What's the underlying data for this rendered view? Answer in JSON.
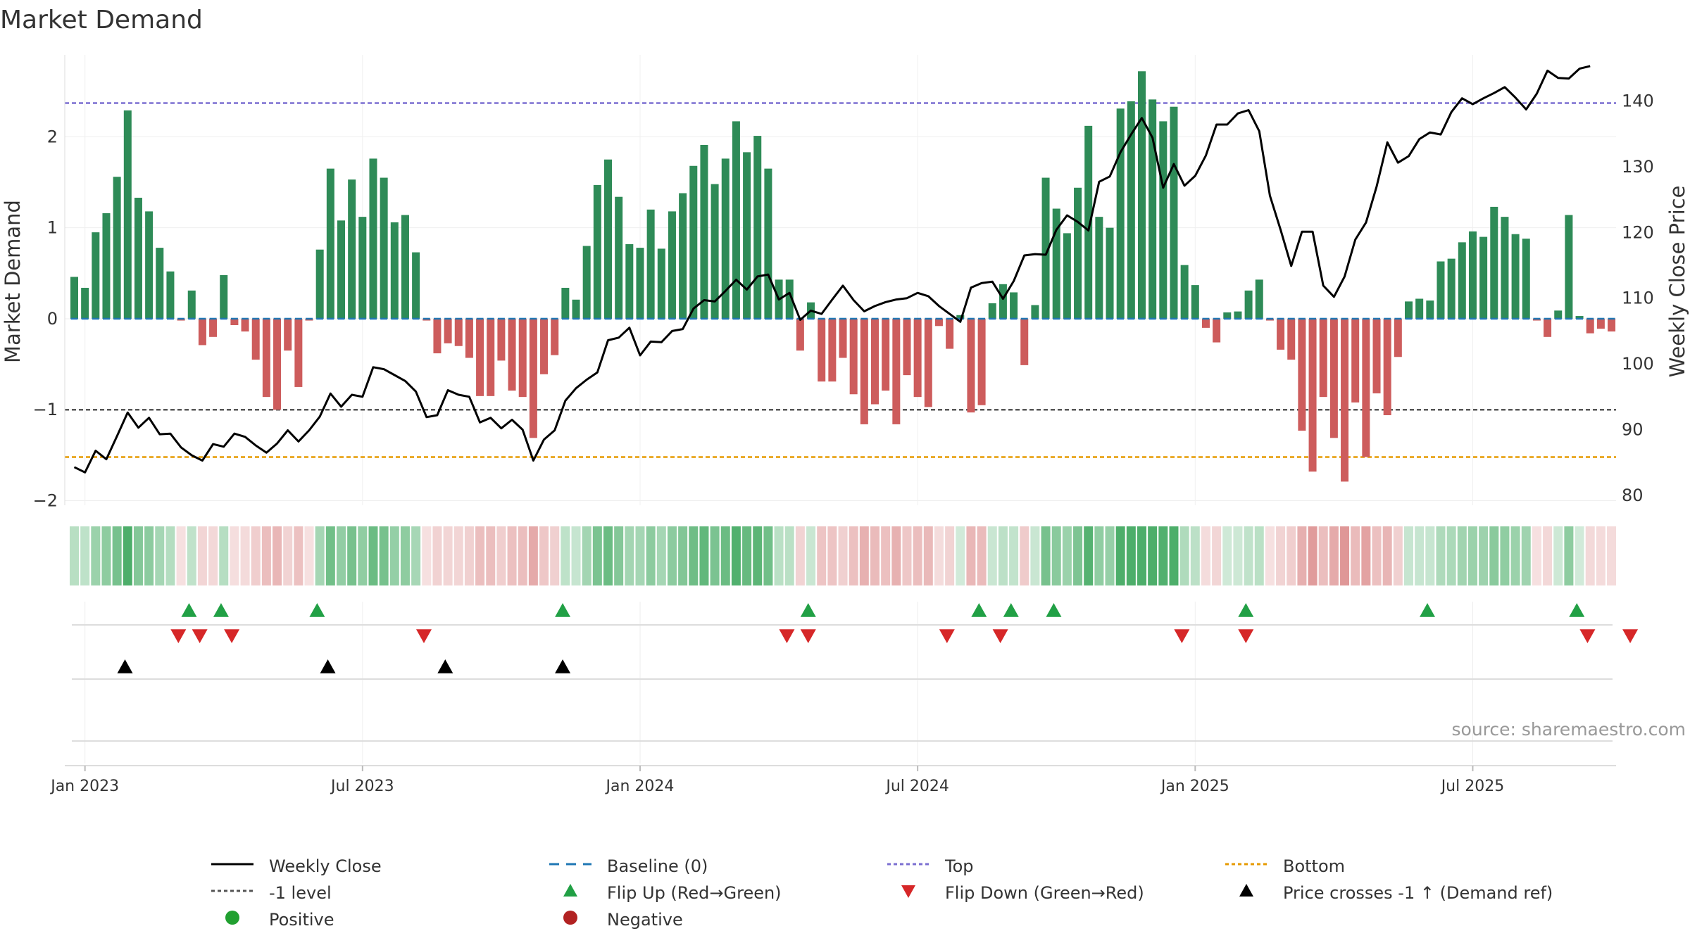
{
  "title": "Market Demand",
  "source": "source: sharemaestro.com",
  "colors": {
    "positive": "#2e8b57",
    "negative": "#cd5c5c",
    "price": "#000000",
    "baseline": "#1f77b4",
    "top": "#7b6fd1",
    "bottom": "#e69a00",
    "minus1": "#555555",
    "flip_up": "#21a045",
    "flip_down": "#d62728",
    "cross": "#000000"
  },
  "legend": [
    [
      {
        "key": "weekly_close",
        "label": "Weekly Close"
      },
      {
        "key": "baseline",
        "label": "Baseline (0)"
      },
      {
        "key": "top",
        "label": "Top"
      },
      {
        "key": "bottom",
        "label": "Bottom"
      }
    ],
    [
      {
        "key": "minus1",
        "label": "-1 level"
      },
      {
        "key": "flip_up",
        "label": "Flip Up (Red→Green)"
      },
      {
        "key": "flip_down",
        "label": "Flip Down (Green→Red)"
      },
      {
        "key": "cross",
        "label": "Price crosses -1 ↑ (Demand ref)"
      }
    ],
    [
      {
        "key": "positive",
        "label": "Positive"
      },
      {
        "key": "negative",
        "label": "Negative"
      }
    ]
  ],
  "chart_data": {
    "type": "bar",
    "title": "Market Demand",
    "ylabel": "Market Demand",
    "ylabel2": "Weekly Close Price",
    "ylim": [
      -2.05,
      2.9
    ],
    "y2lim": [
      78.5,
      147
    ],
    "yticks": [
      -2,
      -1,
      0,
      1,
      2
    ],
    "y2ticks": [
      80,
      90,
      100,
      110,
      120,
      130,
      140
    ],
    "xticks": [
      {
        "label": "Jan 2023",
        "week": 1
      },
      {
        "label": "Jul 2023",
        "week": 27
      },
      {
        "label": "Jan 2024",
        "week": 53
      },
      {
        "label": "Jul 2024",
        "week": 79
      },
      {
        "label": "Jan 2025",
        "week": 105
      },
      {
        "label": "Jul 2025",
        "week": 131
      }
    ],
    "levels": {
      "top": 2.37,
      "bottom": -1.52,
      "minus1": -1.0,
      "baseline": 0
    },
    "demand": [
      0.46,
      0.34,
      0.95,
      1.16,
      1.56,
      2.29,
      1.33,
      1.18,
      0.78,
      0.52,
      -0.02,
      0.31,
      -0.29,
      -0.2,
      0.48,
      -0.07,
      -0.14,
      -0.45,
      -0.86,
      -1.0,
      -0.35,
      -0.75,
      -0.02,
      0.76,
      1.65,
      1.08,
      1.53,
      1.12,
      1.76,
      1.55,
      1.06,
      1.14,
      0.73,
      -0.02,
      -0.38,
      -0.27,
      -0.3,
      -0.43,
      -0.85,
      -0.85,
      -0.46,
      -0.79,
      -0.86,
      -1.31,
      -0.61,
      -0.4,
      0.34,
      0.21,
      0.8,
      1.47,
      1.75,
      1.34,
      0.82,
      0.78,
      1.2,
      0.77,
      1.18,
      1.38,
      1.68,
      1.91,
      1.48,
      1.76,
      2.17,
      1.83,
      2.01,
      1.65,
      0.43,
      0.43,
      -0.35,
      0.18,
      -0.69,
      -0.69,
      -0.43,
      -0.83,
      -1.16,
      -0.94,
      -0.79,
      -1.16,
      -0.62,
      -0.86,
      -0.97,
      -0.08,
      -0.33,
      0.04,
      -1.03,
      -0.95,
      0.17,
      0.38,
      0.29,
      -0.51,
      0.15,
      1.55,
      1.21,
      0.94,
      1.44,
      2.12,
      1.12,
      1.0,
      2.31,
      2.39,
      2.72,
      2.41,
      2.17,
      2.33,
      0.59,
      0.37,
      -0.1,
      -0.26,
      0.07,
      0.08,
      0.31,
      0.43,
      -0.02,
      -0.34,
      -0.45,
      -1.23,
      -1.68,
      -0.86,
      -1.31,
      -1.79,
      -0.92,
      -1.52,
      -0.82,
      -1.06,
      -0.42,
      0.19,
      0.22,
      0.2,
      0.63,
      0.66,
      0.84,
      0.96,
      0.9,
      1.23,
      1.12,
      0.93,
      0.88,
      -0.02,
      -0.2,
      0.09,
      1.14,
      0.03,
      -0.16,
      -0.11,
      -0.14
    ],
    "price": [
      84.3,
      83.5,
      86.8,
      85.5,
      89,
      92.6,
      90.3,
      91.8,
      89.3,
      89.4,
      87.3,
      86.1,
      85.3,
      87.8,
      87.4,
      89.4,
      88.9,
      87.6,
      86.5,
      87.9,
      89.9,
      88.2,
      89.9,
      92,
      95.5,
      93.5,
      95.3,
      95,
      99.5,
      99.2,
      98.3,
      97.4,
      95.8,
      91.9,
      92.2,
      96,
      95.3,
      95,
      91.1,
      91.8,
      90.2,
      91.5,
      90,
      85.3,
      88.5,
      89.9,
      94.4,
      96.3,
      97.6,
      98.7,
      103.6,
      104,
      105.5,
      101.3,
      103.4,
      103.3,
      105,
      105.3,
      108.4,
      109.7,
      109.5,
      111.1,
      112.8,
      111.3,
      113.3,
      113.6,
      109.8,
      110.8,
      106.7,
      108.1,
      107.6,
      109.8,
      111.9,
      109.7,
      108,
      108.8,
      109.4,
      109.8,
      110,
      110.8,
      110.3,
      108.8,
      107.6,
      106.4,
      111.6,
      112.3,
      112.5,
      109.9,
      112.6,
      116.5,
      116.7,
      116.6,
      120.4,
      122.6,
      121.6,
      120.3,
      127.7,
      128.5,
      132.2,
      134.9,
      137.4,
      134.4,
      126.8,
      130.4,
      127.1,
      128.6,
      131.7,
      136.4,
      136.4,
      138.1,
      138.6,
      135.4,
      125.6,
      120.4,
      114.9,
      120.1,
      120.1,
      111.9,
      110.2,
      113.3,
      118.9,
      121.5,
      127,
      133.7,
      130.6,
      131.6,
      134.2,
      135.2,
      134.9,
      138.3,
      140.4,
      139.5,
      140.4,
      141.2,
      142.1,
      140.5,
      138.7,
      141.1,
      144.6,
      143.5,
      143.4,
      144.9,
      145.3
    ],
    "flip_up_weeks": [
      10.75,
      13.75,
      22.75,
      45.75,
      68.75,
      84.75,
      87.75,
      91.75,
      109.75,
      126.75,
      140.75
    ],
    "flip_down_weeks": [
      9.75,
      11.75,
      14.75,
      32.75,
      66.75,
      68.75,
      81.75,
      86.75,
      103.75,
      109.75,
      141.75,
      145.75
    ],
    "cross_weeks": [
      4.75,
      23.75,
      34.75,
      45.75
    ]
  }
}
